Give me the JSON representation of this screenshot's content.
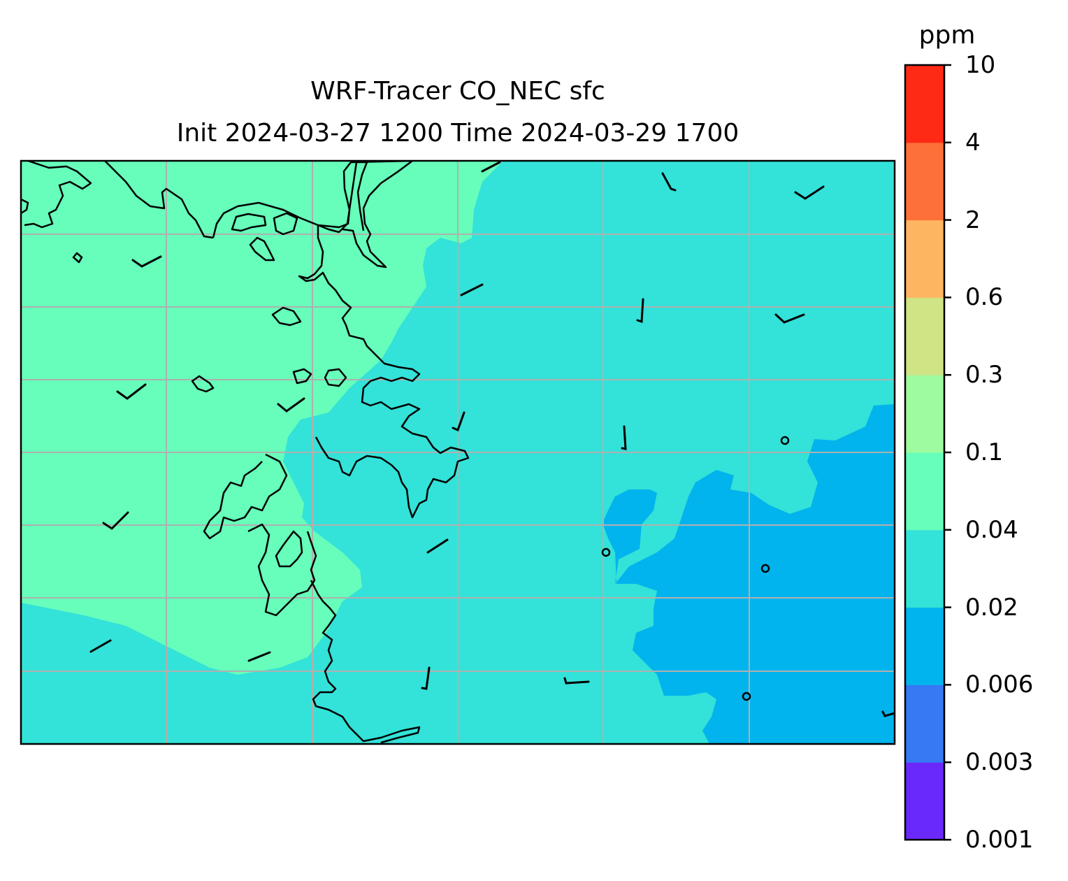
{
  "title": {
    "line1": "WRF-Tracer CO_NEC sfc",
    "line2": "Init 2024-03-27 1200 Time 2024-03-29 1700"
  },
  "colorbar": {
    "unit": "ppm",
    "levels": [
      "0.001",
      "0.003",
      "0.006",
      "0.02",
      "0.04",
      "0.1",
      "0.3",
      "0.6",
      "2",
      "4",
      "10"
    ],
    "colors": [
      "#6a29fb",
      "#3778f3",
      "#01b4ed",
      "#33e2d8",
      "#66feba",
      "#9efb9f",
      "#d0e385",
      "#feb562",
      "#fe7039",
      "#fe2a15"
    ]
  },
  "map": {
    "field_colors": {
      "level_0.04_0.1": "#66feba",
      "level_0.02_0.04": "#33e2d8",
      "level_0.006_0.02": "#01b4ed"
    },
    "coastline_color": "#000000",
    "gridline_color": "#b0b0b0"
  }
}
